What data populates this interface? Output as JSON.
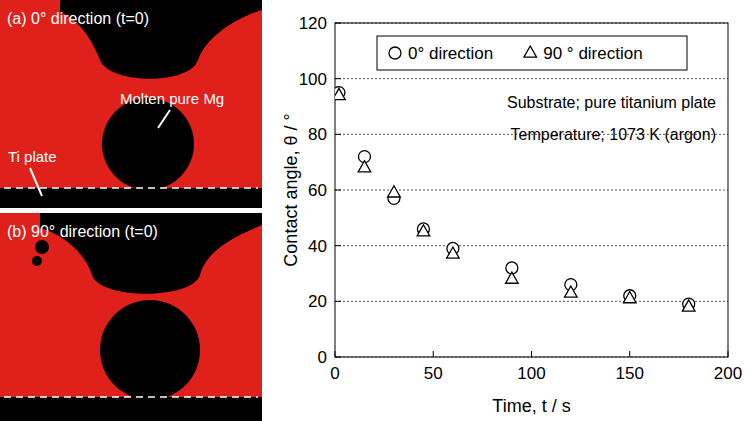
{
  "chart_data": {
    "type": "scatter",
    "x_label": "Time, t / s",
    "y_label": "Contact angle, θ / °",
    "annotations": [
      "Substrate; pure titanium plate",
      "Temperature; 1073 K (argon)"
    ],
    "x": [
      2,
      15,
      30,
      45,
      60,
      90,
      120,
      150,
      180
    ],
    "series": [
      {
        "name": "0° direction",
        "color": "#000000",
        "marker": "circle",
        "values": [
          95,
          72,
          57,
          46,
          39,
          32,
          26,
          22,
          19
        ]
      },
      {
        "name": "90 ° direction",
        "color": "#000000",
        "marker": "triangle",
        "values": [
          94,
          68,
          59,
          45,
          37,
          28,
          23,
          21,
          18
        ]
      }
    ],
    "xlim": [
      0,
      200
    ],
    "xticks": [
      0,
      50,
      100,
      150,
      200
    ],
    "ylim": [
      0,
      120
    ],
    "yticks": [
      0,
      20,
      40,
      60,
      80,
      100,
      120
    ],
    "grid": true,
    "legend": "top"
  },
  "photos": [
    {
      "label": "(a) 0° direction (t=0)",
      "annotations": [
        "Molten pure Mg",
        "Ti plate"
      ]
    },
    {
      "label": "(b) 90° direction (t=0)",
      "annotations": []
    }
  ]
}
